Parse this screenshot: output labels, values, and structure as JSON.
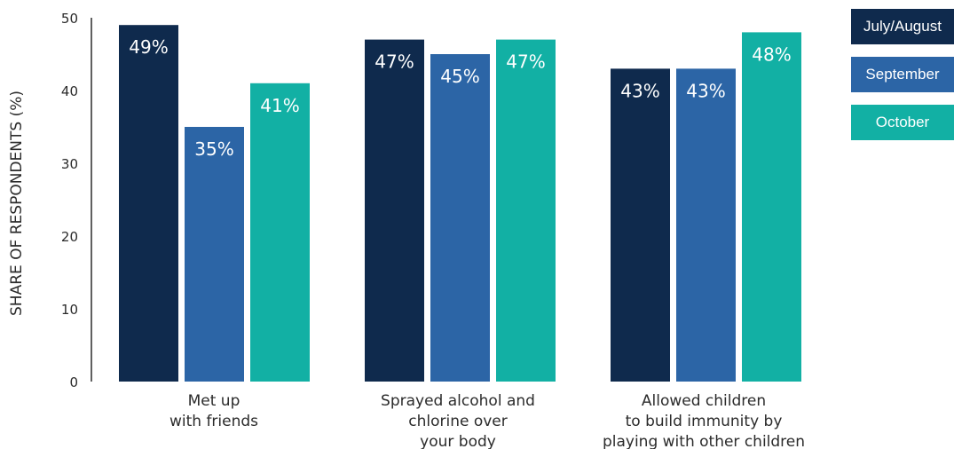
{
  "chart_data": {
    "type": "bar",
    "ylabel": "SHARE OF RESPONDENTS (%)",
    "ylim": [
      0,
      50
    ],
    "yticks": [
      0,
      10,
      20,
      30,
      40,
      50
    ],
    "grid": false,
    "legend_position": "top-right",
    "categories": [
      [
        "Met up",
        "with friends"
      ],
      [
        "Sprayed alcohol and",
        "chlorine over",
        "your body"
      ],
      [
        "Allowed children",
        "to build immunity by",
        "playing with other children"
      ]
    ],
    "series": [
      {
        "name": "July/August",
        "color": "#0f2a4d",
        "values": [
          49,
          47,
          43
        ],
        "labels": [
          "49%",
          "47%",
          "43%"
        ]
      },
      {
        "name": "September",
        "color": "#2c65a6",
        "values": [
          35,
          45,
          43
        ],
        "labels": [
          "35%",
          "45%",
          "43%"
        ]
      },
      {
        "name": "October",
        "color": "#12b0a4",
        "values": [
          41,
          47,
          48
        ],
        "labels": [
          "41%",
          "47%",
          "48%"
        ]
      }
    ]
  }
}
